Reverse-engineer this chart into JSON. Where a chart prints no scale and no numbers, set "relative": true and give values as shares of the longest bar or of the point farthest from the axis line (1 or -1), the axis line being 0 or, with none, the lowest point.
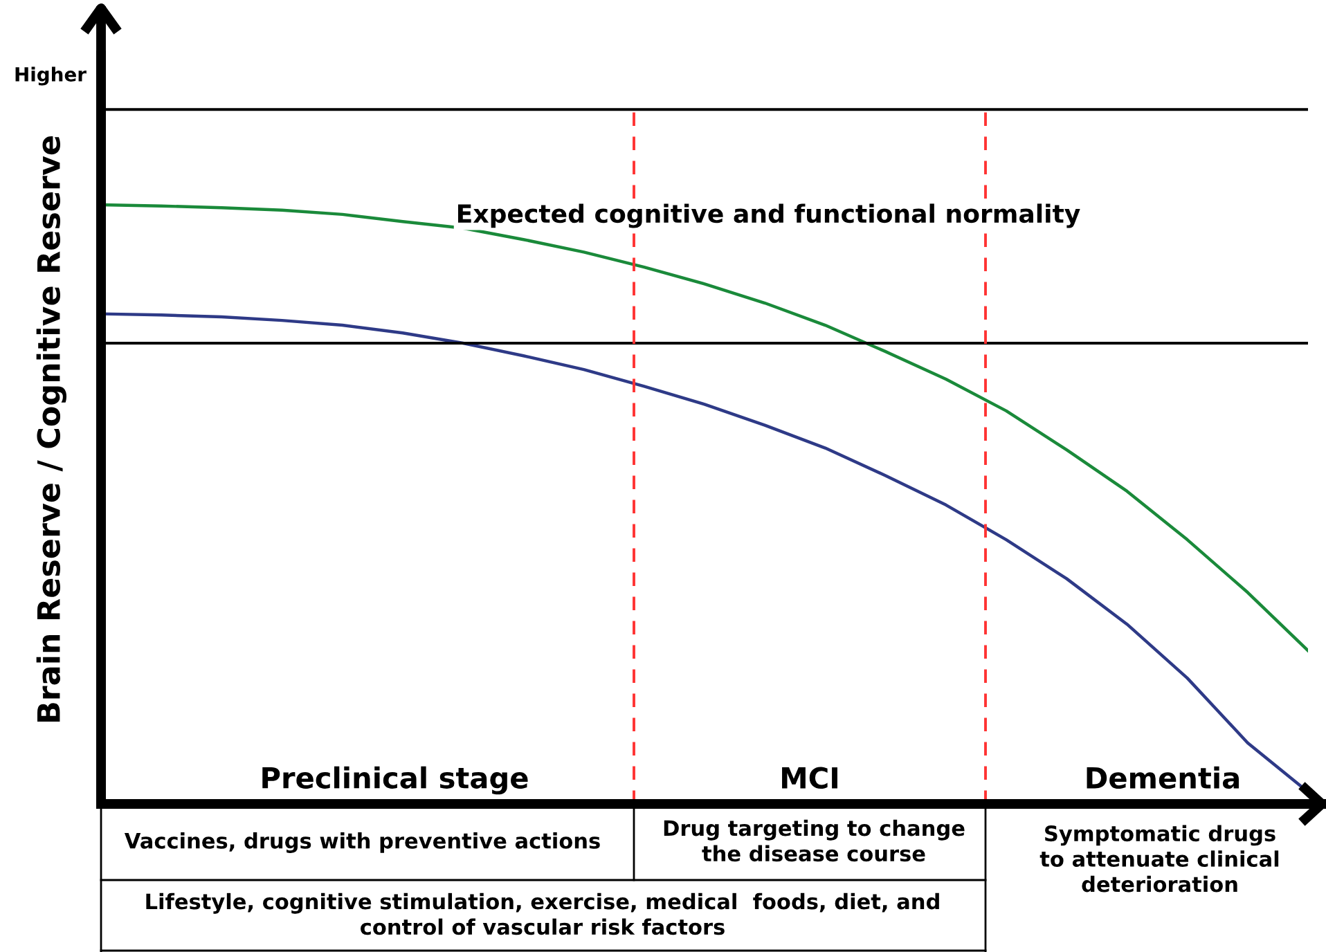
{
  "chart_data": {
    "type": "line",
    "relative": true,
    "ylabel": "Brain Reserve / Cognitive Reserve",
    "categories": [
      null,
      null,
      null,
      null,
      null,
      null,
      null,
      null,
      null,
      null,
      null,
      null,
      null,
      null,
      null,
      null,
      null,
      null,
      null,
      null,
      null
    ],
    "series": [
      {
        "color": "#1a8a3a",
        "values": [
          1.0,
          0.998,
          0.995,
          0.991,
          0.984,
          0.972,
          0.961,
          0.942,
          0.921,
          0.896,
          0.868,
          0.836,
          0.799,
          0.755,
          0.709,
          0.656,
          0.591,
          0.522,
          0.441,
          0.353,
          0.256
        ]
      },
      {
        "color": "#2e3a87",
        "values": [
          0.818,
          0.816,
          0.813,
          0.807,
          0.799,
          0.786,
          0.769,
          0.748,
          0.725,
          0.697,
          0.667,
          0.632,
          0.594,
          0.548,
          0.499,
          0.441,
          0.376,
          0.3,
          0.21,
          0.102,
          0.02
        ]
      }
    ],
    "ref_lines": [
      {
        "axis": "y",
        "value": 1.159,
        "color": "#000000",
        "line_style": "solid"
      },
      {
        "axis": "y",
        "value": 0.769,
        "color": "#000000",
        "line_style": "solid"
      }
    ],
    "annotations": [
      "Higher",
      "Expected cognitive and functional normality",
      "Preclinical stage",
      "MCI",
      "Dementia",
      "Vaccines, drugs with preventive actions",
      "Drug targeting to change\nthe disease course",
      "Symptomatic drugs\nto attenuate clinical\ndeterioration",
      "Lifestyle, cognitive stimulation, exercise, medical  foods, diet, and\ncontrol of vascular risk factors"
    ],
    "legend": false,
    "line_style": "solid",
    "marker": "none"
  }
}
